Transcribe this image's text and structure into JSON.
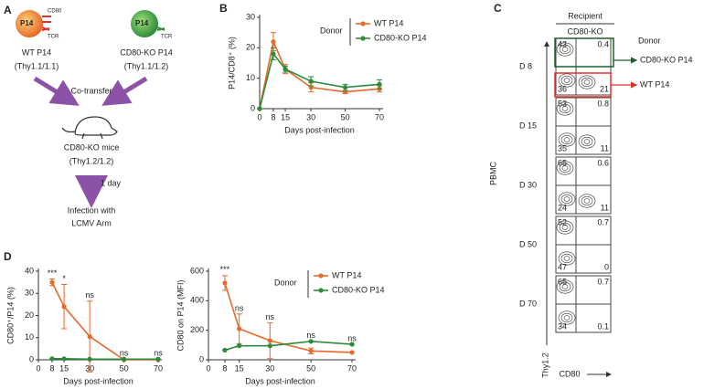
{
  "panel_labels": [
    "A",
    "B",
    "C",
    "D"
  ],
  "schematic": {
    "cells": [
      {
        "name": "WT P14",
        "strain": "(Thy1.1/1.1)",
        "color": "#e3302b",
        "receptors": [
          "CD80",
          "TCR"
        ]
      },
      {
        "name": "CD80-KO P14",
        "strain": "(Thy1.1/1.2)",
        "color": "#2e8b3a",
        "receptors": [
          "TCR"
        ]
      }
    ],
    "cell_text": "P14",
    "step": "Co-transfer",
    "host": "CD80-KO mice",
    "host_strain": "(Thy1.2/1.2)",
    "interval": "1 day",
    "infection": [
      "Infection with",
      "LCMV Arm"
    ]
  },
  "chart_data": [
    {
      "type": "line",
      "x_label": "Days post-infection",
      "y_label": "P14/CD8⁺ (%)",
      "x": [
        0,
        8,
        15,
        30,
        50,
        70
      ],
      "xlim": [
        0,
        70
      ],
      "xticks": [
        0,
        8,
        15,
        30,
        50,
        70
      ],
      "ylim": [
        0,
        30
      ],
      "yticks": [
        0,
        10,
        20,
        30
      ],
      "legend_title": "Donor",
      "legend": "upper right",
      "series": [
        {
          "name": "WT P14",
          "color": "#e8692c",
          "values": [
            0,
            22,
            13,
            7,
            5.5,
            6.5
          ],
          "errors": [
            0,
            3,
            1.5,
            1.5,
            0.5,
            1
          ]
        },
        {
          "name": "CD80-KO P14",
          "color": "#2e8b3a",
          "values": [
            0,
            18,
            13,
            9,
            7,
            8
          ],
          "errors": [
            0,
            2,
            1,
            1.5,
            1,
            1.5
          ]
        }
      ]
    },
    {
      "type": "line",
      "x_label": "Days post-infection",
      "y_label": "CD80⁺/P14 (%)",
      "x": [
        8,
        15,
        30,
        50,
        70
      ],
      "xlim": [
        0,
        70
      ],
      "xticks": [
        0,
        8,
        15,
        30,
        50,
        70
      ],
      "ylim": [
        0,
        40
      ],
      "yticks": [
        0,
        10,
        20,
        30,
        40
      ],
      "series": [
        {
          "name": "WT P14",
          "color": "#e8692c",
          "values": [
            35,
            24,
            10.5,
            0,
            0
          ],
          "errors": [
            1.5,
            10,
            16,
            0,
            0
          ]
        },
        {
          "name": "CD80-KO P14",
          "color": "#2e8b3a",
          "values": [
            0.5,
            0.5,
            0.3,
            0.3,
            0.3
          ],
          "errors": [
            0,
            0,
            0,
            0,
            0
          ]
        }
      ],
      "annotations": [
        {
          "x": 8,
          "text": "***"
        },
        {
          "x": 15,
          "text": "*"
        },
        {
          "x": 30,
          "text": "ns"
        },
        {
          "x": 50,
          "text": "ns"
        },
        {
          "x": 70,
          "text": "ns"
        }
      ]
    },
    {
      "type": "line",
      "x_label": "Days post-infection",
      "y_label": "CD80 on P14 (MFI)",
      "x": [
        8,
        15,
        30,
        50,
        70
      ],
      "xlim": [
        0,
        70
      ],
      "xticks": [
        0,
        8,
        15,
        30,
        50,
        70
      ],
      "ylim": [
        0,
        600
      ],
      "yticks": [
        0,
        200,
        400,
        600
      ],
      "legend_title": "Donor",
      "legend": "upper right",
      "series": [
        {
          "name": "WT P14",
          "color": "#e8692c",
          "values": [
            520,
            210,
            130,
            60,
            50
          ],
          "errors": [
            50,
            100,
            120,
            20,
            0
          ]
        },
        {
          "name": "CD80-KO P14",
          "color": "#2e8b3a",
          "values": [
            65,
            95,
            95,
            125,
            105
          ],
          "errors": [
            0,
            0,
            0,
            0,
            0
          ]
        }
      ],
      "annotations": [
        {
          "x": 8,
          "text": "***"
        },
        {
          "x": 15,
          "text": "ns"
        },
        {
          "x": 30,
          "text": "ns"
        },
        {
          "x": 50,
          "text": "ns"
        },
        {
          "x": 70,
          "text": "ns"
        }
      ]
    }
  ],
  "flow": {
    "header": "Recipient",
    "group": "CD80-KO",
    "row_axis": "PBMC",
    "y_axis": "Thy1.2",
    "x_axis": "CD80",
    "legend_title": "Donor",
    "gates": [
      {
        "label": "CD80-KO P14",
        "color": "#1e5e2e"
      },
      {
        "label": "WT P14",
        "color": "#e3302b"
      }
    ],
    "rows": [
      {
        "label": "D 8",
        "quadrants": [
          43,
          0.4,
          36,
          21
        ]
      },
      {
        "label": "D 15",
        "quadrants": [
          53,
          0.8,
          35,
          11
        ]
      },
      {
        "label": "D 30",
        "quadrants": [
          65,
          0.6,
          24,
          11
        ]
      },
      {
        "label": "D 50",
        "quadrants": [
          52,
          0.7,
          47,
          0
        ]
      },
      {
        "label": "D 70",
        "quadrants": [
          65,
          0.7,
          34,
          0.1
        ]
      }
    ]
  }
}
